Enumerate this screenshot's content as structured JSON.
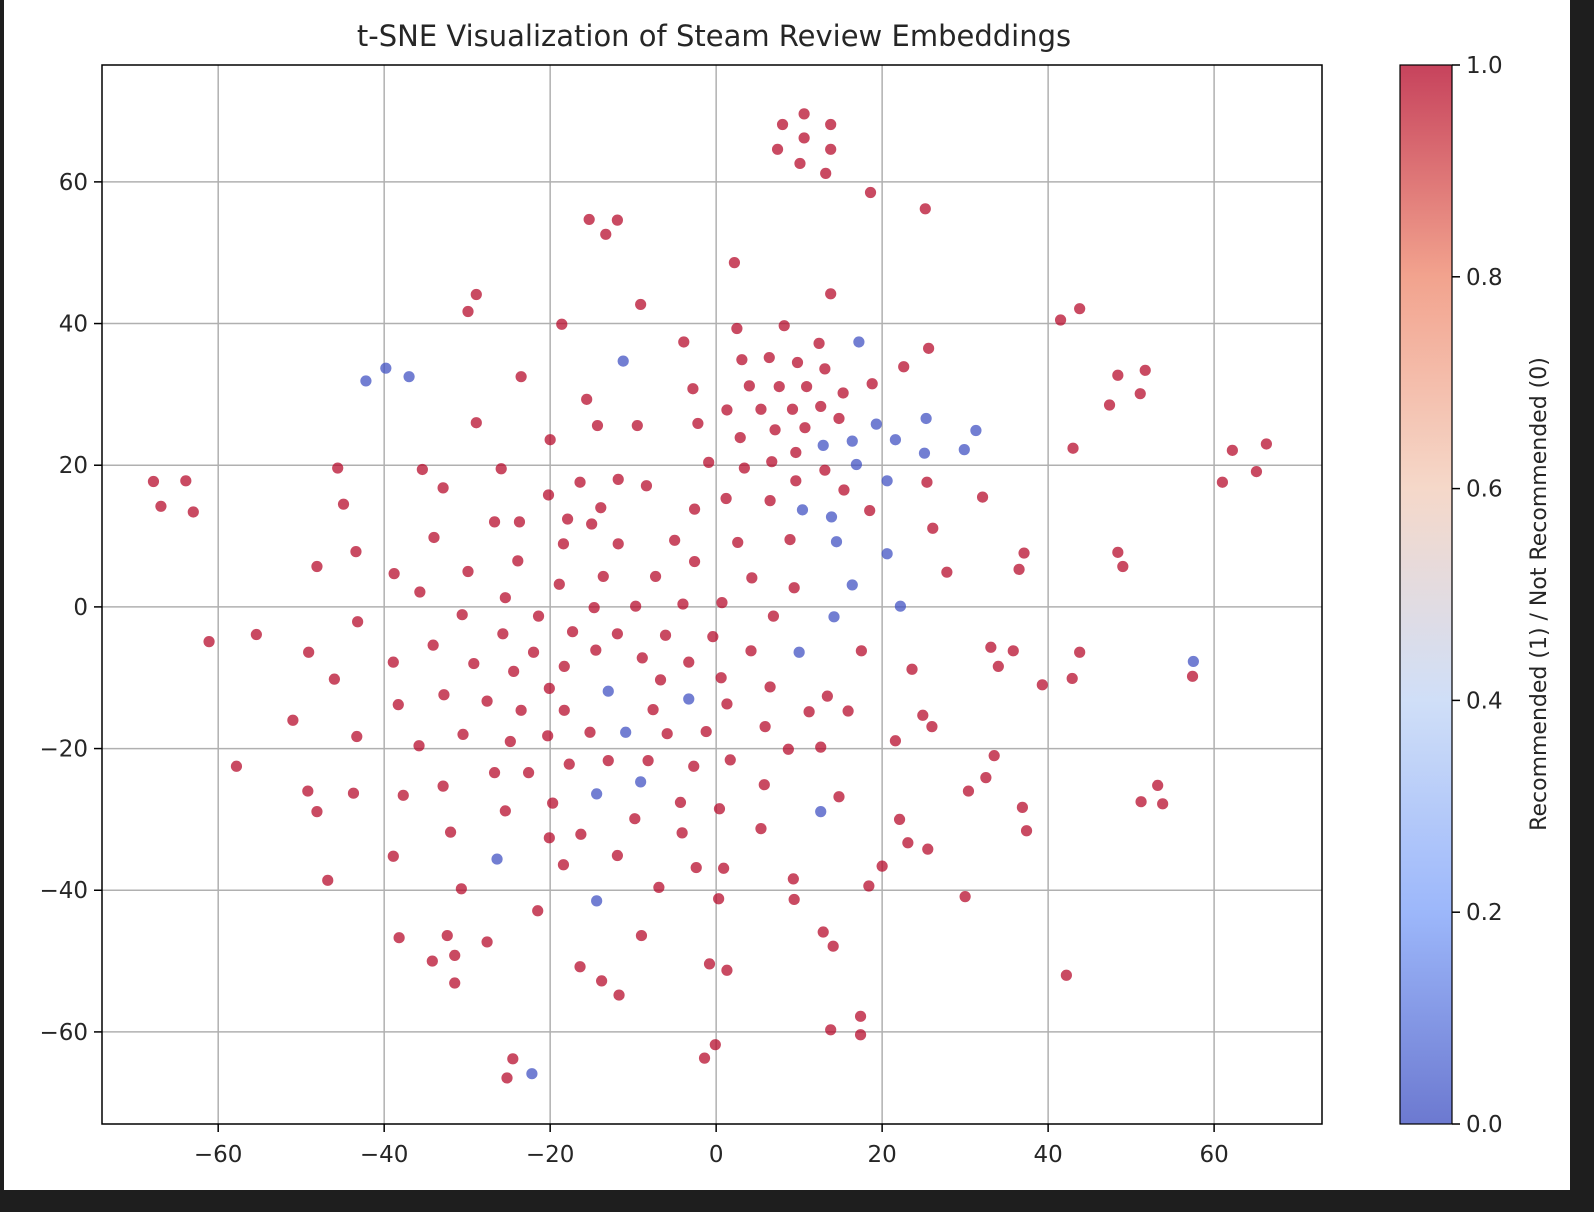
{
  "chart_data": {
    "type": "scatter",
    "title": "t-SNE Visualization of Steam Review Embeddings",
    "xlabel": "",
    "ylabel": "",
    "xlim": [
      -74,
      73
    ],
    "ylim": [
      -73,
      76.5
    ],
    "xticks": [
      -60,
      -40,
      -20,
      0,
      20,
      40,
      60
    ],
    "yticks": [
      -60,
      -40,
      -20,
      0,
      20,
      40,
      60
    ],
    "grid": true,
    "colormap": "coolwarm",
    "colorbar": {
      "label": "Recommended (1) / Not Recommended (0)",
      "range": [
        0,
        1
      ],
      "ticks": [
        "0.0",
        "0.2",
        "0.4",
        "0.6",
        "0.8",
        "1.0"
      ],
      "colors": [
        "#3b4cc0",
        "#7b9ff9",
        "#c0d4f5",
        "#f2cbb7",
        "#ee8468",
        "#b40426"
      ]
    },
    "point_colors": {
      "recommended": "#b40426",
      "not_recommended": "#3b4cc0"
    },
    "points": [
      [
        8,
        68.1,
        1
      ],
      [
        10.6,
        69.6,
        1
      ],
      [
        13.8,
        68.1,
        1
      ],
      [
        10.6,
        66.2,
        1
      ],
      [
        7.4,
        64.6,
        1
      ],
      [
        13.8,
        64.6,
        1
      ],
      [
        10.1,
        62.6,
        1
      ],
      [
        13.2,
        61.2,
        1
      ],
      [
        18.6,
        58.5,
        1
      ],
      [
        25.2,
        56.2,
        1
      ],
      [
        -15.3,
        54.7,
        1
      ],
      [
        -11.9,
        54.6,
        1
      ],
      [
        -13.3,
        52.6,
        1
      ],
      [
        2.2,
        48.6,
        1
      ],
      [
        -28.9,
        44.1,
        1
      ],
      [
        -29.9,
        41.7,
        1
      ],
      [
        -9.1,
        42.7,
        1
      ],
      [
        13.8,
        44.2,
        1
      ],
      [
        -18.6,
        39.9,
        1
      ],
      [
        2.5,
        39.3,
        1
      ],
      [
        8.2,
        39.7,
        1
      ],
      [
        41.5,
        40.5,
        1
      ],
      [
        43.8,
        42.1,
        1
      ],
      [
        -3.9,
        37.4,
        1
      ],
      [
        12.4,
        37.2,
        1
      ],
      [
        17.2,
        37.4,
        0
      ],
      [
        25.6,
        36.5,
        1
      ],
      [
        -42.2,
        31.9,
        0
      ],
      [
        -39.8,
        33.7,
        0
      ],
      [
        -37,
        32.5,
        0
      ],
      [
        -11.2,
        34.7,
        0
      ],
      [
        -23.5,
        32.5,
        1
      ],
      [
        3.1,
        34.9,
        1
      ],
      [
        6.4,
        35.2,
        1
      ],
      [
        9.8,
        34.5,
        1
      ],
      [
        13.1,
        33.6,
        1
      ],
      [
        22.6,
        33.9,
        1
      ],
      [
        48.4,
        32.7,
        1
      ],
      [
        51.7,
        33.4,
        1
      ],
      [
        -15.6,
        29.3,
        1
      ],
      [
        -2.8,
        30.8,
        1
      ],
      [
        4,
        31.2,
        1
      ],
      [
        7.6,
        31.1,
        1
      ],
      [
        10.9,
        31.1,
        1
      ],
      [
        15.3,
        30.2,
        1
      ],
      [
        18.8,
        31.5,
        1
      ],
      [
        47.4,
        28.5,
        1
      ],
      [
        51.1,
        30.1,
        1
      ],
      [
        -28.9,
        26,
        1
      ],
      [
        -14.3,
        25.6,
        1
      ],
      [
        -9.5,
        25.6,
        1
      ],
      [
        -2.2,
        25.9,
        1
      ],
      [
        1.3,
        27.8,
        1
      ],
      [
        5.4,
        27.9,
        1
      ],
      [
        9.2,
        27.9,
        1
      ],
      [
        12.6,
        28.3,
        1
      ],
      [
        7.1,
        25,
        1
      ],
      [
        10.7,
        25.3,
        1
      ],
      [
        14.8,
        26.6,
        1
      ],
      [
        19.3,
        25.8,
        0
      ],
      [
        25.3,
        26.6,
        0
      ],
      [
        31.3,
        24.9,
        0
      ],
      [
        -20,
        23.6,
        1
      ],
      [
        2.9,
        23.9,
        1
      ],
      [
        12.9,
        22.8,
        0
      ],
      [
        16.4,
        23.4,
        0
      ],
      [
        21.6,
        23.6,
        0
      ],
      [
        25.1,
        21.7,
        0
      ],
      [
        29.9,
        22.2,
        0
      ],
      [
        43,
        22.4,
        1
      ],
      [
        62.2,
        22.1,
        1
      ],
      [
        66.3,
        23,
        1
      ],
      [
        -0.9,
        20.4,
        1
      ],
      [
        3.4,
        19.6,
        1
      ],
      [
        6.7,
        20.5,
        1
      ],
      [
        9.6,
        21.8,
        1
      ],
      [
        13.1,
        19.3,
        1
      ],
      [
        16.9,
        20.1,
        0
      ],
      [
        -67.8,
        17.7,
        1
      ],
      [
        -63.9,
        17.8,
        1
      ],
      [
        -45.6,
        19.6,
        1
      ],
      [
        -35.4,
        19.4,
        1
      ],
      [
        -25.9,
        19.5,
        1
      ],
      [
        -16.4,
        17.6,
        1
      ],
      [
        -11.8,
        18,
        1
      ],
      [
        -8.4,
        17.1,
        1
      ],
      [
        20.6,
        17.8,
        0
      ],
      [
        25.4,
        17.6,
        1
      ],
      [
        61,
        17.6,
        1
      ],
      [
        65.1,
        19.1,
        1
      ],
      [
        -66.9,
        14.2,
        1
      ],
      [
        -63,
        13.4,
        1
      ],
      [
        -44.9,
        14.5,
        1
      ],
      [
        -32.9,
        16.8,
        1
      ],
      [
        -20.2,
        15.8,
        1
      ],
      [
        -13.9,
        14,
        1
      ],
      [
        -2.6,
        13.8,
        1
      ],
      [
        1.2,
        15.3,
        1
      ],
      [
        6.5,
        15,
        1
      ],
      [
        9.6,
        17.8,
        1
      ],
      [
        15.4,
        16.5,
        1
      ],
      [
        32.1,
        15.5,
        1
      ],
      [
        -26.7,
        12,
        1
      ],
      [
        -23.7,
        12,
        1
      ],
      [
        -17.9,
        12.4,
        1
      ],
      [
        -15,
        11.7,
        1
      ],
      [
        10.4,
        13.7,
        0
      ],
      [
        13.9,
        12.7,
        0
      ],
      [
        18.5,
        13.6,
        1
      ],
      [
        26.1,
        11.1,
        1
      ],
      [
        -43.4,
        7.8,
        1
      ],
      [
        -34,
        9.8,
        1
      ],
      [
        -18.4,
        8.9,
        1
      ],
      [
        -11.8,
        8.9,
        1
      ],
      [
        -5,
        9.4,
        1
      ],
      [
        2.6,
        9.1,
        1
      ],
      [
        8.9,
        9.5,
        1
      ],
      [
        14.5,
        9.2,
        0
      ],
      [
        20.6,
        7.5,
        0
      ],
      [
        37.1,
        7.6,
        1
      ],
      [
        48.4,
        7.7,
        1
      ],
      [
        -48.1,
        5.7,
        1
      ],
      [
        -38.8,
        4.7,
        1
      ],
      [
        -29.9,
        5,
        1
      ],
      [
        -23.9,
        6.5,
        1
      ],
      [
        -2.6,
        6.4,
        1
      ],
      [
        4.3,
        4.1,
        1
      ],
      [
        27.8,
        4.9,
        1
      ],
      [
        36.5,
        5.3,
        1
      ],
      [
        49,
        5.7,
        1
      ],
      [
        -35.7,
        2.1,
        1
      ],
      [
        -25.4,
        1.3,
        1
      ],
      [
        -18.9,
        3.2,
        1
      ],
      [
        -13.6,
        4.3,
        1
      ],
      [
        -7.3,
        4.3,
        1
      ],
      [
        -4,
        0.4,
        1
      ],
      [
        0.7,
        0.6,
        1
      ],
      [
        9.4,
        2.7,
        1
      ],
      [
        16.4,
        3.1,
        0
      ],
      [
        -14.7,
        -0.1,
        1
      ],
      [
        -9.7,
        0.1,
        1
      ],
      [
        22.2,
        0.1,
        0
      ],
      [
        -61.1,
        -4.9,
        1
      ],
      [
        -55.4,
        -3.9,
        1
      ],
      [
        -43.2,
        -2.1,
        1
      ],
      [
        -30.6,
        -1.1,
        1
      ],
      [
        -21.4,
        -1.3,
        1
      ],
      [
        -25.7,
        -3.8,
        1
      ],
      [
        -17.3,
        -3.5,
        1
      ],
      [
        -11.9,
        -3.8,
        1
      ],
      [
        -6.1,
        -4,
        1
      ],
      [
        -0.4,
        -4.2,
        1
      ],
      [
        6.9,
        -1.3,
        1
      ],
      [
        14.2,
        -1.4,
        0
      ],
      [
        -49.1,
        -6.4,
        1
      ],
      [
        -34.1,
        -5.4,
        1
      ],
      [
        -29.2,
        -8,
        1
      ],
      [
        -24.4,
        -9.1,
        1
      ],
      [
        -22,
        -6.4,
        1
      ],
      [
        -18.3,
        -8.4,
        1
      ],
      [
        -14.5,
        -6.1,
        1
      ],
      [
        -8.9,
        -7.2,
        1
      ],
      [
        -3.3,
        -7.8,
        1
      ],
      [
        4.2,
        -6.2,
        1
      ],
      [
        10,
        -6.4,
        0
      ],
      [
        17.5,
        -6.2,
        1
      ],
      [
        33.1,
        -5.7,
        1
      ],
      [
        34,
        -8.4,
        1
      ],
      [
        35.8,
        -6.2,
        1
      ],
      [
        43.8,
        -6.4,
        1
      ],
      [
        57.5,
        -7.7,
        0
      ],
      [
        -46,
        -10.2,
        1
      ],
      [
        -38.9,
        -7.8,
        1
      ],
      [
        -20.1,
        -11.5,
        1
      ],
      [
        -13,
        -11.9,
        0
      ],
      [
        -6.7,
        -10.3,
        1
      ],
      [
        0.6,
        -10,
        1
      ],
      [
        6.5,
        -11.3,
        1
      ],
      [
        13.4,
        -12.6,
        1
      ],
      [
        23.6,
        -8.8,
        1
      ],
      [
        39.3,
        -11,
        1
      ],
      [
        42.9,
        -10.1,
        1
      ],
      [
        57.4,
        -9.8,
        1
      ],
      [
        -51,
        -16,
        1
      ],
      [
        -38.3,
        -13.8,
        1
      ],
      [
        -32.8,
        -12.4,
        1
      ],
      [
        -27.6,
        -13.3,
        1
      ],
      [
        -23.5,
        -14.6,
        1
      ],
      [
        -18.3,
        -14.6,
        1
      ],
      [
        -15.2,
        -17.7,
        1
      ],
      [
        -7.6,
        -14.5,
        1
      ],
      [
        -3.3,
        -13,
        0
      ],
      [
        1.3,
        -13.7,
        1
      ],
      [
        5.9,
        -16.9,
        1
      ],
      [
        11.2,
        -14.8,
        1
      ],
      [
        15.9,
        -14.7,
        1
      ],
      [
        24.9,
        -15.3,
        1
      ],
      [
        26,
        -16.9,
        1
      ],
      [
        -57.8,
        -22.5,
        1
      ],
      [
        -43.3,
        -18.3,
        1
      ],
      [
        -35.8,
        -19.6,
        1
      ],
      [
        -30.5,
        -18,
        1
      ],
      [
        -24.8,
        -19,
        1
      ],
      [
        -20.3,
        -18.2,
        1
      ],
      [
        -10.9,
        -17.7,
        0
      ],
      [
        -5.9,
        -17.9,
        1
      ],
      [
        -1.2,
        -17.6,
        1
      ],
      [
        8.7,
        -20.1,
        1
      ],
      [
        12.6,
        -19.8,
        1
      ],
      [
        21.6,
        -18.9,
        1
      ],
      [
        -26.7,
        -23.4,
        1
      ],
      [
        -22.6,
        -23.4,
        1
      ],
      [
        -17.7,
        -22.2,
        1
      ],
      [
        -13,
        -21.7,
        1
      ],
      [
        -8.2,
        -21.7,
        1
      ],
      [
        -2.7,
        -22.5,
        1
      ],
      [
        1.7,
        -21.6,
        1
      ],
      [
        33.5,
        -21,
        1
      ],
      [
        -49.2,
        -26,
        1
      ],
      [
        -43.7,
        -26.3,
        1
      ],
      [
        -37.7,
        -26.6,
        1
      ],
      [
        -32.9,
        -25.3,
        1
      ],
      [
        -14.4,
        -26.4,
        0
      ],
      [
        -9.1,
        -24.7,
        0
      ],
      [
        5.8,
        -25.1,
        1
      ],
      [
        32.5,
        -24.1,
        1
      ],
      [
        53.2,
        -25.2,
        1
      ],
      [
        -48.1,
        -28.9,
        1
      ],
      [
        -25.4,
        -28.8,
        1
      ],
      [
        -19.7,
        -27.7,
        1
      ],
      [
        -4.3,
        -27.6,
        1
      ],
      [
        0.4,
        -28.5,
        1
      ],
      [
        12.6,
        -28.9,
        0
      ],
      [
        14.8,
        -26.8,
        1
      ],
      [
        30.4,
        -26,
        1
      ],
      [
        36.9,
        -28.3,
        1
      ],
      [
        51.2,
        -27.5,
        1
      ],
      [
        53.8,
        -27.8,
        1
      ],
      [
        -32,
        -31.8,
        1
      ],
      [
        -20.1,
        -32.6,
        1
      ],
      [
        -16.3,
        -32.1,
        1
      ],
      [
        -9.8,
        -29.9,
        1
      ],
      [
        -4.1,
        -31.9,
        1
      ],
      [
        5.4,
        -31.3,
        1
      ],
      [
        22.1,
        -30,
        1
      ],
      [
        37.4,
        -31.6,
        1
      ],
      [
        -38.9,
        -35.2,
        1
      ],
      [
        -26.4,
        -35.6,
        0
      ],
      [
        -18.4,
        -36.4,
        1
      ],
      [
        -11.9,
        -35.1,
        1
      ],
      [
        -2.4,
        -36.8,
        1
      ],
      [
        0.9,
        -36.9,
        1
      ],
      [
        20,
        -36.6,
        1
      ],
      [
        23.1,
        -33.3,
        1
      ],
      [
        25.5,
        -34.2,
        1
      ],
      [
        -46.8,
        -38.6,
        1
      ],
      [
        -30.7,
        -39.8,
        1
      ],
      [
        -6.9,
        -39.6,
        1
      ],
      [
        9.3,
        -38.4,
        1
      ],
      [
        18.4,
        -39.4,
        1
      ],
      [
        -14.4,
        -41.5,
        0
      ],
      [
        0.3,
        -41.2,
        1
      ],
      [
        9.4,
        -41.3,
        1
      ],
      [
        30,
        -40.9,
        1
      ],
      [
        -38.2,
        -46.7,
        1
      ],
      [
        -32.4,
        -46.4,
        1
      ],
      [
        -27.6,
        -47.3,
        1
      ],
      [
        -21.5,
        -42.9,
        1
      ],
      [
        -9,
        -46.4,
        1
      ],
      [
        12.9,
        -45.9,
        1
      ],
      [
        14.1,
        -47.9,
        1
      ],
      [
        -34.2,
        -50,
        1
      ],
      [
        -31.5,
        -49.2,
        1
      ],
      [
        -16.4,
        -50.8,
        1
      ],
      [
        -13.8,
        -52.8,
        1
      ],
      [
        -0.8,
        -50.4,
        1
      ],
      [
        1.3,
        -51.3,
        1
      ],
      [
        42.2,
        -52,
        1
      ],
      [
        -31.5,
        -53.1,
        1
      ],
      [
        -11.7,
        -54.8,
        1
      ],
      [
        13.8,
        -59.7,
        1
      ],
      [
        17.4,
        -57.8,
        1
      ],
      [
        17.4,
        -60.4,
        1
      ],
      [
        -24.5,
        -63.8,
        1
      ],
      [
        -25.2,
        -66.5,
        1
      ],
      [
        -22.2,
        -65.9,
        0
      ],
      [
        -1.4,
        -63.7,
        1
      ],
      [
        -0.1,
        -61.8,
        1
      ]
    ]
  }
}
